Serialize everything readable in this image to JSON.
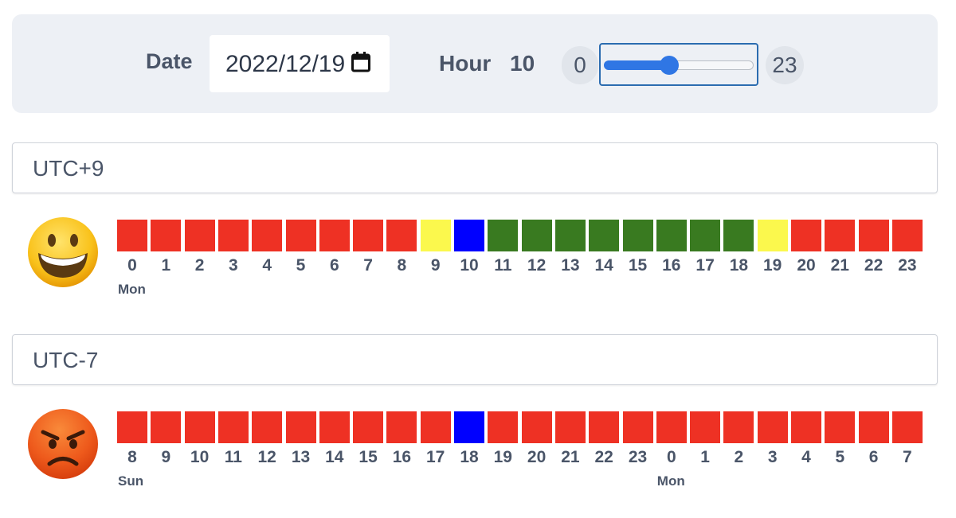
{
  "controls": {
    "date_label": "Date",
    "date_value": "2022/12/19",
    "hour_label": "Hour",
    "hour_value": "10",
    "slider_min": "0",
    "slider_max": "23",
    "slider_value": 10,
    "slider_min_value": 0,
    "slider_max_value": 23,
    "accent_color": "#2f76e4"
  },
  "palette": {
    "red": "#ee3124",
    "yellow": "#fbf84d",
    "blue": "#0000ff",
    "green": "#397a20"
  },
  "timezones": [
    {
      "name": "UTC+9",
      "emoji": "grinning-face",
      "hours": [
        "0",
        "1",
        "2",
        "3",
        "4",
        "5",
        "6",
        "7",
        "8",
        "9",
        "10",
        "11",
        "12",
        "13",
        "14",
        "15",
        "16",
        "17",
        "18",
        "19",
        "20",
        "21",
        "22",
        "23"
      ],
      "colors": [
        "red",
        "red",
        "red",
        "red",
        "red",
        "red",
        "red",
        "red",
        "red",
        "yellow",
        "blue",
        "green",
        "green",
        "green",
        "green",
        "green",
        "green",
        "green",
        "green",
        "yellow",
        "red",
        "red",
        "red",
        "red"
      ],
      "day_labels": [
        {
          "index": 0,
          "text": "Mon"
        }
      ]
    },
    {
      "name": "UTC-7",
      "emoji": "angry-face",
      "hours": [
        "8",
        "9",
        "10",
        "11",
        "12",
        "13",
        "14",
        "15",
        "16",
        "17",
        "18",
        "19",
        "20",
        "21",
        "22",
        "23",
        "0",
        "1",
        "2",
        "3",
        "4",
        "5",
        "6",
        "7"
      ],
      "colors": [
        "red",
        "red",
        "red",
        "red",
        "red",
        "red",
        "red",
        "red",
        "red",
        "red",
        "blue",
        "red",
        "red",
        "red",
        "red",
        "red",
        "red",
        "red",
        "red",
        "red",
        "red",
        "red",
        "red",
        "red"
      ],
      "day_labels": [
        {
          "index": 0,
          "text": "Sun"
        },
        {
          "index": 16,
          "text": "Mon"
        }
      ]
    }
  ]
}
